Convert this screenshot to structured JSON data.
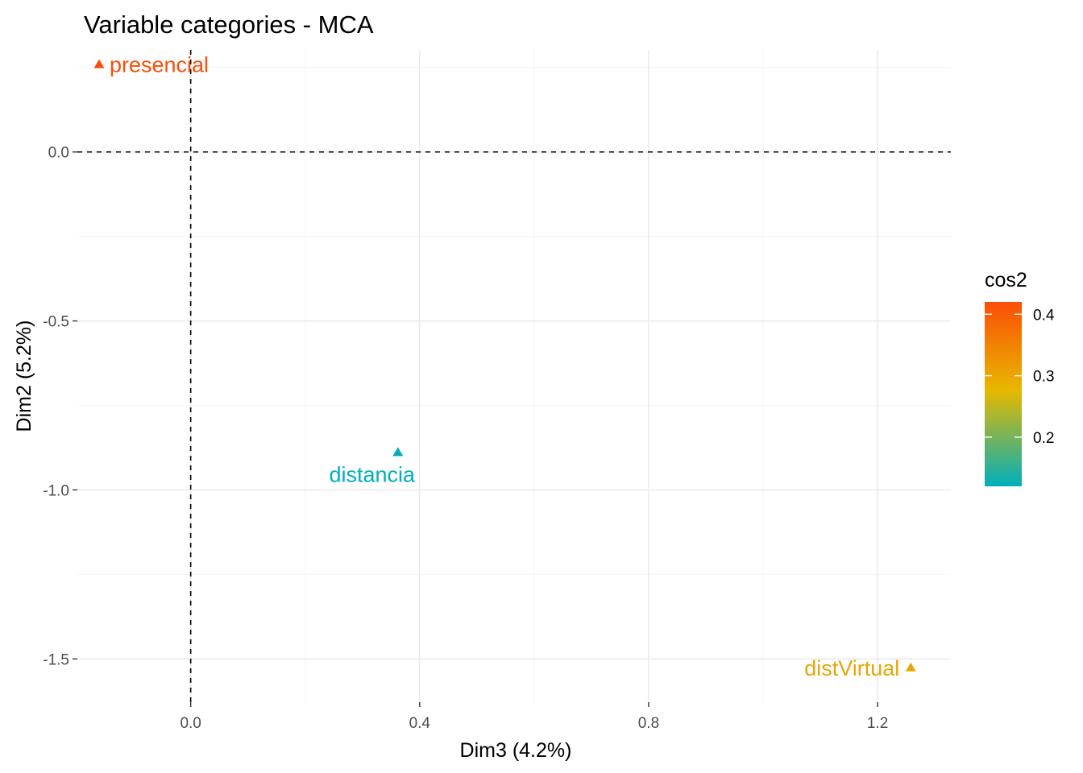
{
  "chart_data": {
    "type": "scatter",
    "title": "Variable categories - MCA",
    "xlabel": "Dim3 (4.2%)",
    "ylabel": "Dim2 (5.2%)",
    "xlim": [
      -0.198,
      1.328
    ],
    "ylim": [
      -1.628,
      0.302
    ],
    "x_ticks": [
      0.0,
      0.4,
      0.8,
      1.2
    ],
    "x_tick_labels": [
      "0.0",
      "0.4",
      "0.8",
      "1.2"
    ],
    "y_ticks": [
      0.0,
      -0.5,
      -1.0,
      -1.5
    ],
    "y_tick_labels": [
      "0.0",
      "-0.5",
      "-1.0",
      "-1.5"
    ],
    "grid": true,
    "reference_lines": {
      "x": 0,
      "y": 0,
      "style": "dashed"
    },
    "points": [
      {
        "label": "presencial",
        "x": -0.16,
        "y": 0.26,
        "cos2": 0.42,
        "color": "#FC4E07"
      },
      {
        "label": "distancia",
        "x": 0.362,
        "y": -0.888,
        "cos2": 0.12,
        "color": "#00AFBB"
      },
      {
        "label": "distVirtual",
        "x": 1.258,
        "y": -1.525,
        "cos2": 0.3,
        "color": "#E7A608"
      }
    ],
    "legend": {
      "title": "cos2",
      "position": "right",
      "gradient": [
        "#00AFBB",
        "#E7B800",
        "#FC4E07"
      ],
      "range": [
        0.12,
        0.42
      ],
      "ticks": [
        0.2,
        0.3,
        0.4
      ],
      "tick_labels": [
        "0.2",
        "0.3",
        "0.4"
      ]
    }
  }
}
